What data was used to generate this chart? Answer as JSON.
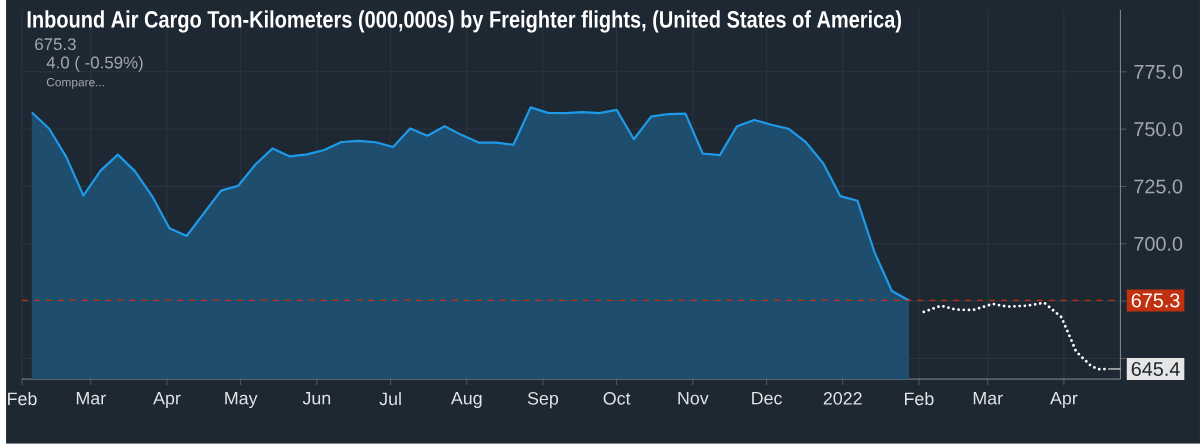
{
  "chart_data": {
    "type": "area",
    "title": "Inbound Air Cargo Ton-Kilometers (000,000s) by Freighter flights, (United States of America)",
    "annotations": [
      "675.3",
      "4.0 ( -0.59%)",
      "Compare...",
      {
        "text": "645.4",
        "x": "2022-04-19",
        "y": 645.4
      }
    ],
    "series": [
      {
        "color": "#1e9be8",
        "x": [
          "2021-02-05",
          "2021-02-12",
          "2021-02-19",
          "2021-02-26",
          "2021-03-05",
          "2021-03-12",
          "2021-03-19",
          "2021-03-26",
          "2021-04-02",
          "2021-04-09",
          "2021-04-23",
          "2021-04-30",
          "2021-05-07",
          "2021-05-14",
          "2021-05-21",
          "2021-05-28",
          "2021-06-04",
          "2021-06-11",
          "2021-06-18",
          "2021-06-25",
          "2021-07-02",
          "2021-07-09",
          "2021-07-16",
          "2021-07-23",
          "2021-07-30",
          "2021-08-06",
          "2021-08-13",
          "2021-08-20",
          "2021-08-27",
          "2021-09-03",
          "2021-09-10",
          "2021-09-17",
          "2021-09-24",
          "2021-10-01",
          "2021-10-08",
          "2021-10-15",
          "2021-10-22",
          "2021-10-29",
          "2021-11-05",
          "2021-11-12",
          "2021-11-19",
          "2021-11-26",
          "2021-12-03",
          "2021-12-10",
          "2021-12-17",
          "2021-12-24",
          "2021-12-31",
          "2022-01-07",
          "2022-01-14",
          "2022-01-21",
          "2022-01-28"
        ],
        "values": [
          757.3,
          750.3,
          737.9,
          721.0,
          731.9,
          738.9,
          731.6,
          720.7,
          706.8,
          703.4,
          723.2,
          725.3,
          734.6,
          741.6,
          738.1,
          739.0,
          740.9,
          744.4,
          744.9,
          744.3,
          742.2,
          750.3,
          747.1,
          751.3,
          747.4,
          744.1,
          744.1,
          743.2,
          759.5,
          757.1,
          757.0,
          757.4,
          757.0,
          758.4,
          745.6,
          755.5,
          756.6,
          756.8,
          739.4,
          738.7,
          751.3,
          754.0,
          751.9,
          750.1,
          744.3,
          735.2,
          720.8,
          718.8,
          696.1,
          679.4,
          675.3
        ]
      },
      {
        "type": "line",
        "color": "#ffffff",
        "line_style": "dotted",
        "x": [
          "2022-02-03",
          "2022-02-10",
          "2022-02-16",
          "2022-02-23",
          "2022-03-03",
          "2022-03-09",
          "2022-03-17",
          "2022-03-24",
          "2022-03-31",
          "2022-04-06",
          "2022-04-12",
          "2022-04-15",
          "2022-04-19"
        ],
        "values": [
          670.3,
          673.0,
          671.3,
          671.1,
          673.8,
          672.6,
          673.0,
          674.3,
          668.0,
          653.0,
          646.8,
          645.3,
          645.4
        ]
      }
    ],
    "xlim": [
      "2021-02-01",
      "2022-04-24"
    ],
    "xticks": [
      {
        "value": "2021-02-01",
        "label": "Feb"
      },
      {
        "value": "2021-03-01",
        "label": "Mar"
      },
      {
        "value": "2021-04-01",
        "label": "Apr"
      },
      {
        "value": "2021-05-01",
        "label": "May"
      },
      {
        "value": "2021-06-01",
        "label": "Jun"
      },
      {
        "value": "2021-07-01",
        "label": "Jul"
      },
      {
        "value": "2021-08-01",
        "label": "Aug"
      },
      {
        "value": "2021-09-01",
        "label": "Sep"
      },
      {
        "value": "2021-10-01",
        "label": "Oct"
      },
      {
        "value": "2021-11-01",
        "label": "Nov"
      },
      {
        "value": "2021-12-01",
        "label": "Dec"
      },
      {
        "value": "2022-01-01",
        "label": "2022"
      },
      {
        "value": "2022-02-01",
        "label": "Feb"
      },
      {
        "value": "2022-03-01",
        "label": "Mar"
      },
      {
        "value": "2022-04-01",
        "label": "Apr"
      }
    ],
    "ylim": [
      641,
      802
    ],
    "yticks": [
      {
        "value": 650,
        "label": null
      },
      {
        "value": 675,
        "label": null
      },
      {
        "value": 700,
        "label": "700.0"
      },
      {
        "value": 725,
        "label": "725.0"
      },
      {
        "value": 750,
        "label": "750.0"
      },
      {
        "value": 775,
        "label": "775.0"
      }
    ],
    "grid": true,
    "ref_lines": [
      {
        "axis": "y",
        "value": 675.3,
        "label": "675.3",
        "color": "#c0320f",
        "line_style": "dashed"
      }
    ]
  }
}
